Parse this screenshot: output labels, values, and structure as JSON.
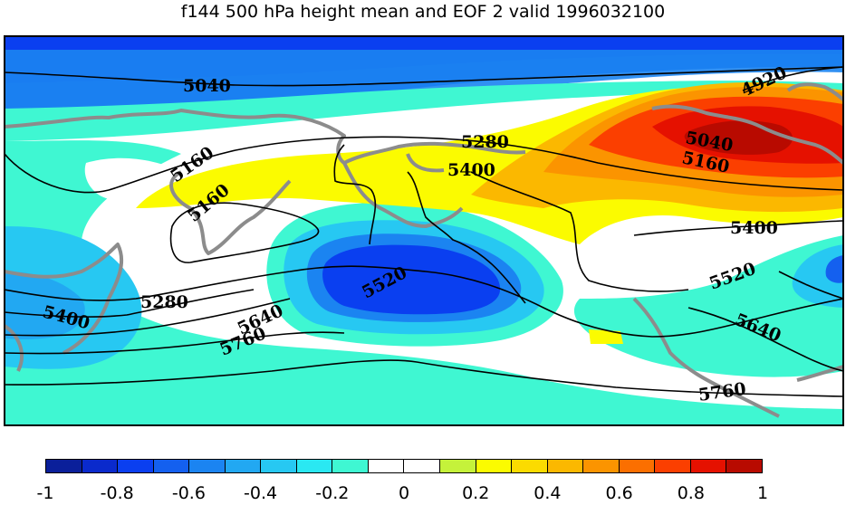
{
  "title": "f144 500 hPa height mean and EOF 2 valid 1996032100",
  "colorbar": {
    "colors": [
      "#0a1f9a",
      "#0a2acc",
      "#0a3ff0",
      "#1460ef",
      "#1b84f1",
      "#22a8f2",
      "#27c8f2",
      "#2ae8f2",
      "#3ff7d2",
      "#ffffff",
      "#ffffff",
      "#c5f23a",
      "#fbfb00",
      "#fbdb00",
      "#fbb800",
      "#fb9400",
      "#fb6f00",
      "#fb3f00",
      "#e51100",
      "#b80a00"
    ],
    "ticks": [
      "-1",
      "-0.8",
      "-0.6",
      "-0.4",
      "-0.2",
      "0",
      "0.2",
      "0.4",
      "0.6",
      "0.8",
      "1"
    ]
  },
  "contours": {
    "labels": [
      {
        "text": "5040"
      },
      {
        "text": "4920"
      },
      {
        "text": "5160"
      },
      {
        "text": "5280"
      },
      {
        "text": "5400"
      },
      {
        "text": "5160"
      },
      {
        "text": "5040"
      },
      {
        "text": "5160"
      },
      {
        "text": "5400"
      },
      {
        "text": "5520"
      },
      {
        "text": "5280"
      },
      {
        "text": "5400"
      },
      {
        "text": "5640"
      },
      {
        "text": "5760"
      },
      {
        "text": "5520"
      },
      {
        "text": "5640"
      },
      {
        "text": "5760"
      }
    ]
  }
}
